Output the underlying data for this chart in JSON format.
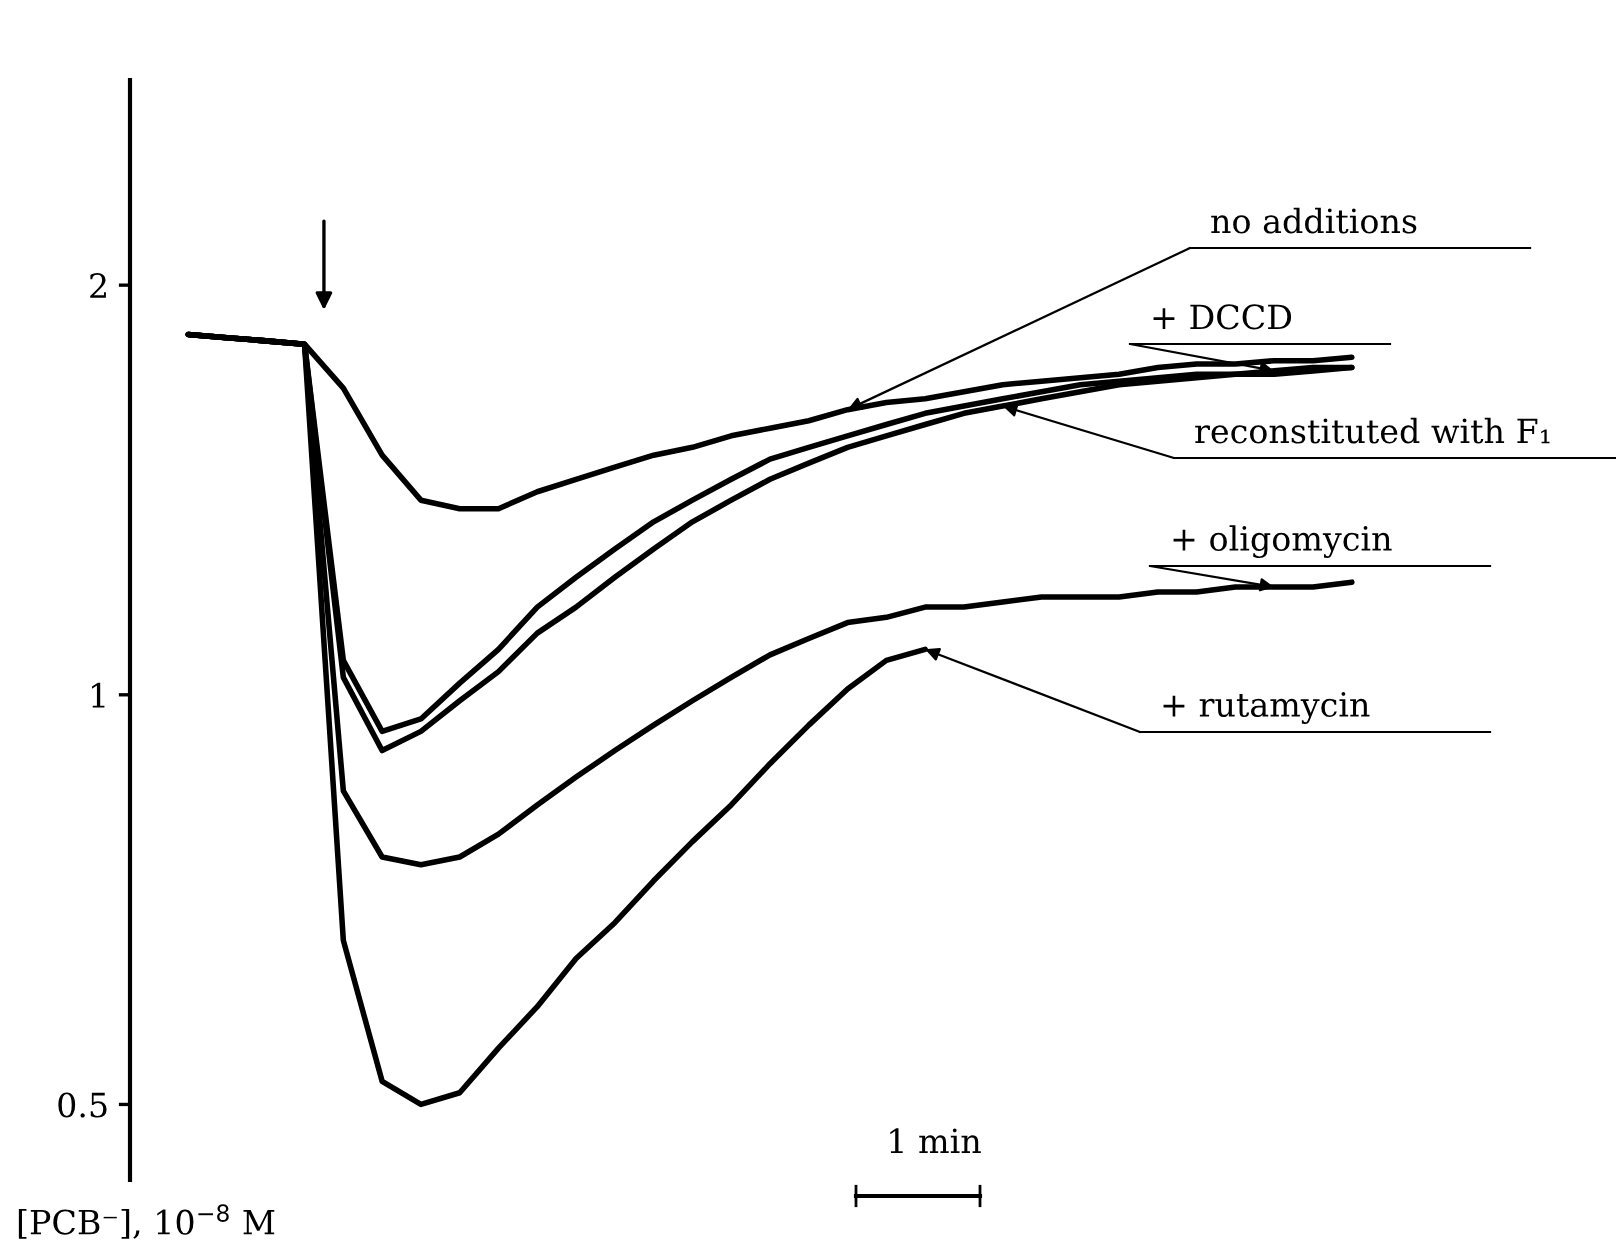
{
  "chart_data": {
    "type": "line",
    "ylabel": "[PCB⁻], 10$^{−8}$ M",
    "annotations": [
      "1 min"
    ],
    "categories": [
      null,
      null,
      null,
      null,
      null,
      null,
      null,
      null,
      null,
      null,
      null,
      null,
      null,
      null,
      null,
      null,
      null,
      null,
      null,
      null,
      null,
      null,
      null,
      null,
      null,
      null,
      null,
      null,
      null,
      null,
      null
    ],
    "log": "y",
    "ylim": [
      0.44,
      2.83
    ],
    "yticks": [
      0.5,
      1,
      2
    ],
    "grid": false,
    "legend": false,
    "marker": "none",
    "line_style": "solid",
    "series": [
      {
        "name": "no additions",
        "color": "#000000",
        "values": [
          1.84,
          1.83,
          1.82,
          1.81,
          1.68,
          1.5,
          1.39,
          1.37,
          1.37,
          1.41,
          1.44,
          1.47,
          1.5,
          1.52,
          1.55,
          1.57,
          1.59,
          1.62,
          1.64,
          1.65,
          1.67,
          1.69,
          1.7,
          1.71,
          1.72,
          1.74,
          1.75,
          1.75,
          1.76,
          1.76,
          1.77
        ]
      },
      {
        "name": "+ DCCD",
        "color": "#000000",
        "values": [
          1.84,
          1.83,
          1.82,
          1.81,
          1.06,
          0.94,
          0.96,
          1.02,
          1.08,
          1.16,
          1.22,
          1.28,
          1.34,
          1.39,
          1.44,
          1.49,
          1.52,
          1.55,
          1.58,
          1.61,
          1.63,
          1.65,
          1.67,
          1.69,
          1.7,
          1.71,
          1.72,
          1.72,
          1.73,
          1.74,
          1.74
        ]
      },
      {
        "name": "reconstituted with F₁",
        "color": "#000000",
        "values": [
          1.84,
          1.83,
          1.82,
          1.81,
          1.03,
          0.91,
          0.94,
          0.99,
          1.04,
          1.11,
          1.16,
          1.22,
          1.28,
          1.34,
          1.39,
          1.44,
          1.48,
          1.52,
          1.55,
          1.58,
          1.61,
          1.63,
          1.65,
          1.67,
          1.69,
          1.7,
          1.71,
          1.72,
          1.72,
          1.73,
          1.74
        ]
      },
      {
        "name": "+ oligomycin",
        "color": "#000000",
        "values": [
          1.84,
          1.83,
          1.82,
          1.81,
          0.85,
          0.76,
          0.75,
          0.76,
          0.79,
          0.83,
          0.87,
          0.91,
          0.95,
          0.99,
          1.03,
          1.07,
          1.1,
          1.13,
          1.14,
          1.16,
          1.16,
          1.17,
          1.18,
          1.18,
          1.18,
          1.19,
          1.19,
          1.2,
          1.2,
          1.2,
          1.21
        ]
      },
      {
        "name": "+ rutamycin",
        "color": "#000000",
        "values": [
          1.84,
          1.83,
          1.82,
          1.81,
          0.66,
          0.52,
          0.5,
          0.51,
          0.55,
          0.59,
          0.64,
          0.68,
          0.73,
          0.78,
          0.83,
          0.89,
          0.95,
          1.01,
          1.06,
          1.08,
          null,
          null,
          null,
          null,
          null,
          null,
          null,
          null,
          null,
          null,
          null
        ]
      }
    ]
  }
}
